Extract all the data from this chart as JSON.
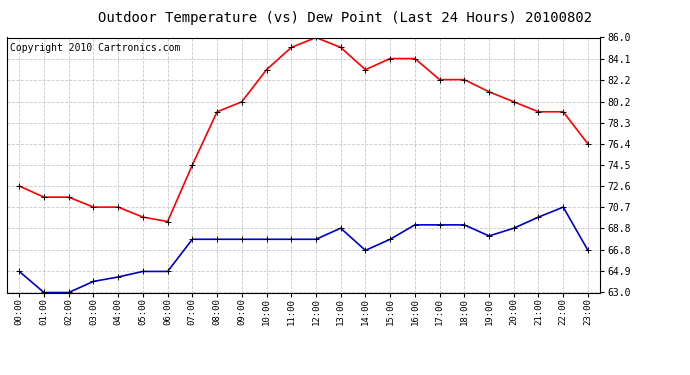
{
  "title": "Outdoor Temperature (vs) Dew Point (Last 24 Hours) 20100802",
  "copyright": "Copyright 2010 Cartronics.com",
  "x_labels": [
    "00:00",
    "01:00",
    "02:00",
    "03:00",
    "04:00",
    "05:00",
    "06:00",
    "07:00",
    "08:00",
    "09:00",
    "10:00",
    "11:00",
    "12:00",
    "13:00",
    "14:00",
    "15:00",
    "16:00",
    "17:00",
    "18:00",
    "19:00",
    "20:00",
    "21:00",
    "22:00",
    "23:00"
  ],
  "temp_data": [
    72.6,
    71.6,
    71.6,
    70.7,
    70.7,
    69.8,
    69.4,
    74.5,
    79.3,
    80.2,
    83.1,
    85.1,
    86.0,
    85.1,
    83.1,
    84.1,
    84.1,
    82.2,
    82.2,
    81.1,
    80.2,
    79.3,
    79.3,
    76.4
  ],
  "dew_data": [
    64.9,
    63.0,
    63.0,
    64.0,
    64.4,
    64.9,
    64.9,
    67.8,
    67.8,
    67.8,
    67.8,
    67.8,
    67.8,
    68.8,
    66.8,
    67.8,
    69.1,
    69.1,
    69.1,
    68.1,
    68.8,
    69.8,
    70.7,
    66.8
  ],
  "y_ticks": [
    63.0,
    64.9,
    66.8,
    68.8,
    70.7,
    72.6,
    74.5,
    76.4,
    78.3,
    80.2,
    82.2,
    84.1,
    86.0
  ],
  "ylim": [
    63.0,
    86.0
  ],
  "temp_color": "#ff0000",
  "dew_color": "#0000cc",
  "bg_color": "#ffffff",
  "grid_color": "#c8c8c8",
  "title_fontsize": 10,
  "copyright_fontsize": 7,
  "marker": "+",
  "markersize": 5,
  "linewidth": 1.2,
  "fig_width": 6.9,
  "fig_height": 3.75,
  "dpi": 100
}
